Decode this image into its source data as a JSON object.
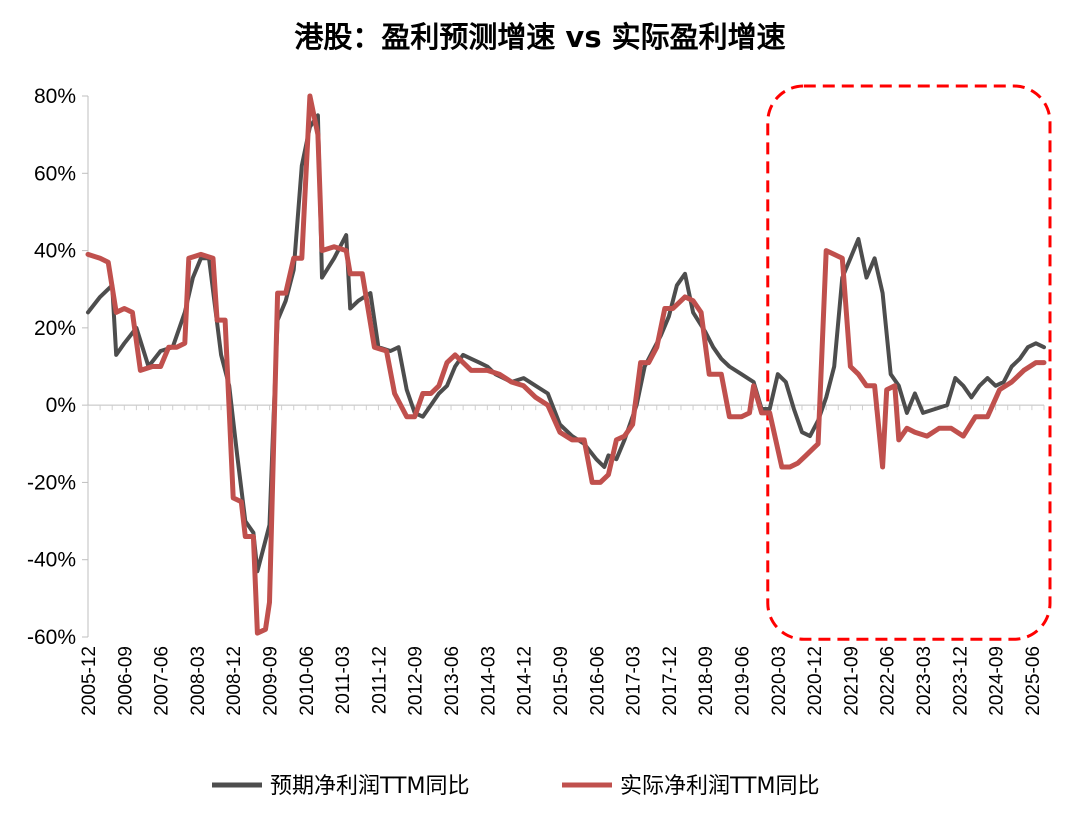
{
  "chart_data": {
    "type": "line",
    "title": "港股：盈利预测增速 vs 实际盈利增速",
    "xlabel": "",
    "ylabel": "",
    "ylim": [
      -60,
      80
    ],
    "y_ticks": [
      "-60%",
      "-40%",
      "-20%",
      "0%",
      "20%",
      "40%",
      "60%",
      "80%"
    ],
    "y_tick_values": [
      -60,
      -40,
      -20,
      0,
      20,
      40,
      60,
      80
    ],
    "x_range": [
      "2005-12",
      "2025-09"
    ],
    "x_ticks": [
      "2005-12",
      "2006-09",
      "2007-06",
      "2008-03",
      "2008-12",
      "2009-09",
      "2010-06",
      "2011-03",
      "2011-12",
      "2012-09",
      "2013-06",
      "2014-03",
      "2014-12",
      "2015-09",
      "2016-06",
      "2017-03",
      "2017-12",
      "2018-09",
      "2019-06",
      "2020-03",
      "2020-12",
      "2021-09",
      "2022-06",
      "2023-03",
      "2023-12",
      "2024-09",
      "2025-06"
    ],
    "grid": false,
    "legend_position": "bottom",
    "series": [
      {
        "name": "预期净利润TTM同比",
        "color": "#4d4d4d",
        "points": [
          [
            "2005-12",
            24
          ],
          [
            "2006-03",
            28
          ],
          [
            "2006-06",
            31
          ],
          [
            "2006-07",
            13
          ],
          [
            "2006-09",
            16
          ],
          [
            "2006-12",
            20
          ],
          [
            "2007-03",
            10
          ],
          [
            "2007-06",
            14
          ],
          [
            "2007-09",
            15
          ],
          [
            "2007-12",
            24
          ],
          [
            "2008-02",
            33
          ],
          [
            "2008-04",
            38
          ],
          [
            "2008-06",
            38
          ],
          [
            "2008-09",
            13
          ],
          [
            "2008-11",
            5
          ],
          [
            "2009-01",
            -13
          ],
          [
            "2009-03",
            -30
          ],
          [
            "2009-05",
            -33
          ],
          [
            "2009-06",
            -43
          ],
          [
            "2009-08",
            -35
          ],
          [
            "2009-09",
            -31
          ],
          [
            "2009-10",
            -3
          ],
          [
            "2009-11",
            22
          ],
          [
            "2010-01",
            27
          ],
          [
            "2010-03",
            35
          ],
          [
            "2010-05",
            62
          ],
          [
            "2010-07",
            72
          ],
          [
            "2010-09",
            75
          ],
          [
            "2010-10",
            33
          ],
          [
            "2011-01",
            38
          ],
          [
            "2011-04",
            44
          ],
          [
            "2011-05",
            25
          ],
          [
            "2011-07",
            27
          ],
          [
            "2011-10",
            29
          ],
          [
            "2011-12",
            15
          ],
          [
            "2012-03",
            14
          ],
          [
            "2012-05",
            15
          ],
          [
            "2012-07",
            4
          ],
          [
            "2012-09",
            -2
          ],
          [
            "2012-11",
            -3
          ],
          [
            "2013-01",
            0
          ],
          [
            "2013-03",
            3
          ],
          [
            "2013-05",
            5
          ],
          [
            "2013-07",
            10
          ],
          [
            "2013-09",
            13
          ],
          [
            "2013-11",
            12
          ],
          [
            "2014-01",
            11
          ],
          [
            "2014-03",
            10
          ],
          [
            "2014-05",
            8
          ],
          [
            "2014-07",
            7
          ],
          [
            "2014-09",
            6
          ],
          [
            "2014-12",
            7
          ],
          [
            "2015-03",
            5
          ],
          [
            "2015-06",
            3
          ],
          [
            "2015-09",
            -5
          ],
          [
            "2015-12",
            -8
          ],
          [
            "2016-03",
            -10
          ],
          [
            "2016-06",
            -14
          ],
          [
            "2016-08",
            -16
          ],
          [
            "2016-09",
            -13
          ],
          [
            "2016-11",
            -14
          ],
          [
            "2017-01",
            -9
          ],
          [
            "2017-04",
            0
          ],
          [
            "2017-06",
            10
          ],
          [
            "2017-08",
            14
          ],
          [
            "2017-10",
            18
          ],
          [
            "2017-12",
            23
          ],
          [
            "2018-02",
            31
          ],
          [
            "2018-04",
            34
          ],
          [
            "2018-06",
            24
          ],
          [
            "2018-09",
            19
          ],
          [
            "2018-11",
            15
          ],
          [
            "2019-01",
            12
          ],
          [
            "2019-03",
            10
          ],
          [
            "2019-06",
            8
          ],
          [
            "2019-09",
            6
          ],
          [
            "2019-11",
            -1
          ],
          [
            "2020-01",
            -1
          ],
          [
            "2020-03",
            8
          ],
          [
            "2020-05",
            6
          ],
          [
            "2020-07",
            -1
          ],
          [
            "2020-09",
            -7
          ],
          [
            "2020-11",
            -8
          ],
          [
            "2021-01",
            -4
          ],
          [
            "2021-03",
            2
          ],
          [
            "2021-05",
            10
          ],
          [
            "2021-07",
            33
          ],
          [
            "2021-09",
            38
          ],
          [
            "2021-11",
            43
          ],
          [
            "2022-01",
            33
          ],
          [
            "2022-03",
            38
          ],
          [
            "2022-05",
            29
          ],
          [
            "2022-07",
            8
          ],
          [
            "2022-09",
            5
          ],
          [
            "2022-11",
            -2
          ],
          [
            "2023-01",
            3
          ],
          [
            "2023-03",
            -2
          ],
          [
            "2023-06",
            -1
          ],
          [
            "2023-09",
            0
          ],
          [
            "2023-11",
            7
          ],
          [
            "2024-01",
            5
          ],
          [
            "2024-03",
            2
          ],
          [
            "2024-05",
            5
          ],
          [
            "2024-07",
            7
          ],
          [
            "2024-09",
            5
          ],
          [
            "2024-11",
            6
          ],
          [
            "2025-01",
            10
          ],
          [
            "2025-03",
            12
          ],
          [
            "2025-05",
            15
          ],
          [
            "2025-07",
            16
          ],
          [
            "2025-09",
            15
          ]
        ]
      },
      {
        "name": "实际净利润TTM同比",
        "color": "#c0504d",
        "points": [
          [
            "2005-12",
            39
          ],
          [
            "2006-03",
            38
          ],
          [
            "2006-05",
            37
          ],
          [
            "2006-07",
            24
          ],
          [
            "2006-09",
            25
          ],
          [
            "2006-11",
            24
          ],
          [
            "2007-01",
            9
          ],
          [
            "2007-04",
            10
          ],
          [
            "2007-06",
            10
          ],
          [
            "2007-08",
            15
          ],
          [
            "2007-10",
            15
          ],
          [
            "2007-12",
            16
          ],
          [
            "2008-01",
            38
          ],
          [
            "2008-04",
            39
          ],
          [
            "2008-07",
            38
          ],
          [
            "2008-08",
            22
          ],
          [
            "2008-10",
            22
          ],
          [
            "2008-12",
            -24
          ],
          [
            "2009-02",
            -25
          ],
          [
            "2009-03",
            -34
          ],
          [
            "2009-05",
            -34
          ],
          [
            "2009-06",
            -59
          ],
          [
            "2009-08",
            -58
          ],
          [
            "2009-09",
            -51
          ],
          [
            "2009-11",
            29
          ],
          [
            "2010-01",
            29
          ],
          [
            "2010-03",
            38
          ],
          [
            "2010-05",
            38
          ],
          [
            "2010-07",
            82
          ],
          [
            "2010-09",
            70
          ],
          [
            "2010-10",
            40
          ],
          [
            "2011-01",
            41
          ],
          [
            "2011-04",
            40
          ],
          [
            "2011-05",
            34
          ],
          [
            "2011-08",
            34
          ],
          [
            "2011-11",
            15
          ],
          [
            "2012-02",
            14
          ],
          [
            "2012-04",
            3
          ],
          [
            "2012-07",
            -3
          ],
          [
            "2012-09",
            -3
          ],
          [
            "2012-11",
            3
          ],
          [
            "2013-01",
            3
          ],
          [
            "2013-03",
            5
          ],
          [
            "2013-05",
            11
          ],
          [
            "2013-07",
            13
          ],
          [
            "2013-09",
            11
          ],
          [
            "2013-11",
            9
          ],
          [
            "2014-01",
            9
          ],
          [
            "2014-03",
            9
          ],
          [
            "2014-06",
            8
          ],
          [
            "2014-09",
            6
          ],
          [
            "2014-12",
            5
          ],
          [
            "2015-03",
            2
          ],
          [
            "2015-06",
            0
          ],
          [
            "2015-09",
            -7
          ],
          [
            "2015-12",
            -9
          ],
          [
            "2016-03",
            -9
          ],
          [
            "2016-05",
            -20
          ],
          [
            "2016-07",
            -20
          ],
          [
            "2016-09",
            -18
          ],
          [
            "2016-11",
            -9
          ],
          [
            "2017-01",
            -8
          ],
          [
            "2017-03",
            -5
          ],
          [
            "2017-05",
            11
          ],
          [
            "2017-07",
            11
          ],
          [
            "2017-09",
            15
          ],
          [
            "2017-11",
            25
          ],
          [
            "2018-01",
            25
          ],
          [
            "2018-04",
            28
          ],
          [
            "2018-06",
            27
          ],
          [
            "2018-08",
            24
          ],
          [
            "2018-10",
            8
          ],
          [
            "2019-01",
            8
          ],
          [
            "2019-03",
            -3
          ],
          [
            "2019-06",
            -3
          ],
          [
            "2019-08",
            -2
          ],
          [
            "2019-09",
            5
          ],
          [
            "2019-11",
            -2
          ],
          [
            "2020-01",
            -2
          ],
          [
            "2020-04",
            -16
          ],
          [
            "2020-06",
            -16
          ],
          [
            "2020-08",
            -15
          ],
          [
            "2020-10",
            -13
          ],
          [
            "2020-12",
            -11
          ],
          [
            "2021-01",
            -10
          ],
          [
            "2021-03",
            40
          ],
          [
            "2021-05",
            39
          ],
          [
            "2021-07",
            38
          ],
          [
            "2021-09",
            10
          ],
          [
            "2021-11",
            8
          ],
          [
            "2022-01",
            5
          ],
          [
            "2022-03",
            5
          ],
          [
            "2022-05",
            -16
          ],
          [
            "2022-06",
            4
          ],
          [
            "2022-08",
            5
          ],
          [
            "2022-09",
            -9
          ],
          [
            "2022-11",
            -6
          ],
          [
            "2023-01",
            -7
          ],
          [
            "2023-04",
            -8
          ],
          [
            "2023-07",
            -6
          ],
          [
            "2023-10",
            -6
          ],
          [
            "2024-01",
            -8
          ],
          [
            "2024-04",
            -3
          ],
          [
            "2024-07",
            -3
          ],
          [
            "2024-10",
            4
          ],
          [
            "2025-01",
            6
          ],
          [
            "2025-04",
            9
          ],
          [
            "2025-07",
            11
          ],
          [
            "2025-09",
            11
          ]
        ]
      }
    ],
    "annotations": [
      {
        "type": "dashed-rounded-box",
        "color": "#ff0000",
        "x_from": "2020-03",
        "x_to": "2025-09",
        "y_from": -58,
        "y_to": 80
      }
    ]
  }
}
